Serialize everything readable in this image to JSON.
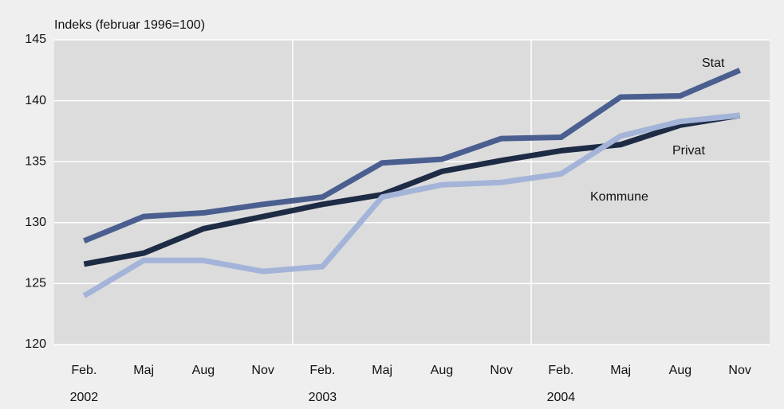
{
  "chart_data": {
    "type": "line",
    "y_label": "Indeks (februar 1996=100)",
    "categories": [
      "Feb.",
      "Maj",
      "Aug",
      "Nov",
      "Feb.",
      "Maj",
      "Aug",
      "Nov",
      "Feb.",
      "Maj",
      "Aug",
      "Nov"
    ],
    "years": [
      "2002",
      "2003",
      "2004"
    ],
    "series": [
      {
        "name": "Stat",
        "color": "#4a5f8f",
        "values": [
          128.5,
          130.5,
          130.8,
          131.5,
          132.1,
          134.9,
          135.2,
          136.9,
          137.0,
          140.3,
          140.4,
          142.5
        ]
      },
      {
        "name": "Privat",
        "color": "#1e2b45",
        "values": [
          126.6,
          127.5,
          129.5,
          130.5,
          131.5,
          132.3,
          134.2,
          135.1,
          135.9,
          136.4,
          138.0,
          138.8
        ]
      },
      {
        "name": "Kommune",
        "color": "#a3b4d8",
        "values": [
          124.0,
          126.9,
          126.9,
          126.0,
          126.4,
          132.1,
          133.1,
          133.3,
          134.0,
          137.1,
          138.3,
          138.8
        ]
      }
    ],
    "ylim": [
      120,
      145
    ],
    "yticks": [
      120,
      125,
      130,
      135,
      140,
      145
    ],
    "grid": true
  }
}
